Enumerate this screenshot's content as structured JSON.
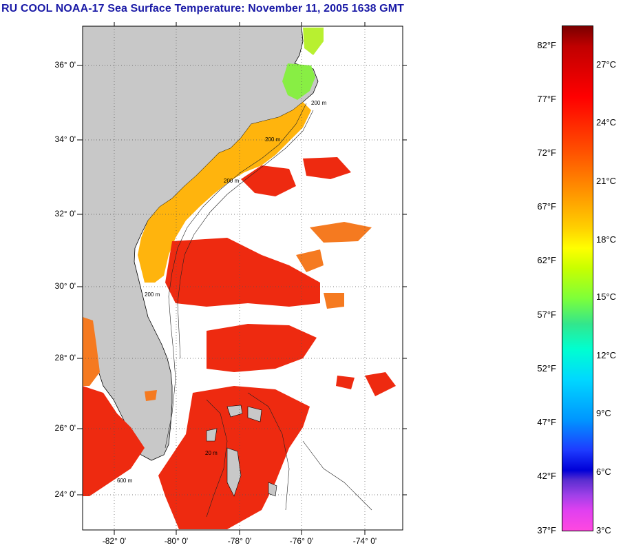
{
  "title": "RU COOL  NOAA-17  Sea Surface Temperature:  November 11, 2005 1638 GMT",
  "map": {
    "lat_labels": [
      "36° 0'",
      "34° 0'",
      "32° 0'",
      "30° 0'",
      "28° 0'",
      "26° 0'",
      "24° 0'"
    ],
    "lon_labels": [
      "-82° 0'",
      "-80° 0'",
      "-78° 0'",
      "-76° 0'",
      "-74° 0'"
    ],
    "land_color": "#c8c8c8",
    "contour_labels": [
      "200 m",
      "200 m",
      "200 m",
      "200 m",
      "600 m",
      "20 m"
    ]
  },
  "colorbar": {
    "fahrenheit": [
      "82°F",
      "77°F",
      "72°F",
      "67°F",
      "62°F",
      "57°F",
      "52°F",
      "47°F",
      "42°F",
      "37°F"
    ],
    "celsius": [
      "27°C",
      "24°C",
      "21°C",
      "18°C",
      "15°C",
      "12°C",
      "9°C",
      "6°C",
      "3°C"
    ]
  }
}
